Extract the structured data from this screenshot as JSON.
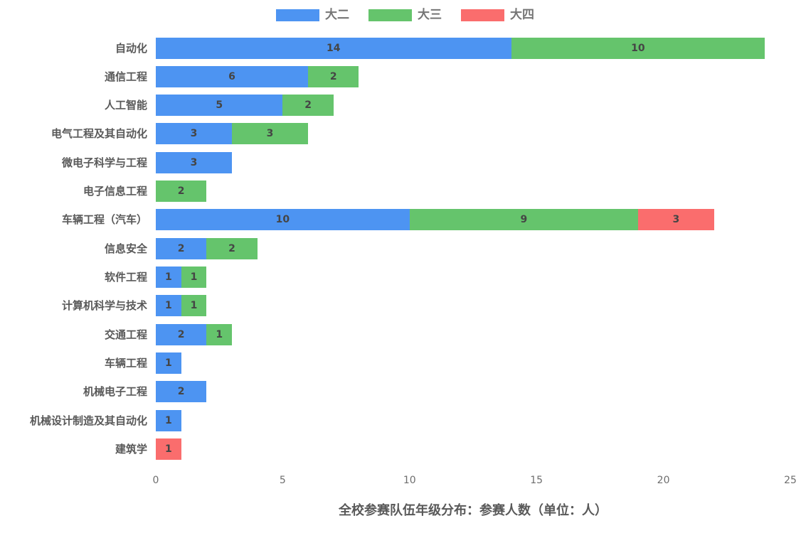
{
  "chart_data": {
    "type": "bar",
    "orientation": "horizontal",
    "stacked": true,
    "title": "全校参赛队伍年级分布：参赛人数（单位：人）",
    "categories": [
      "自动化",
      "通信工程",
      "人工智能",
      "电气工程及其自动化",
      "微电子科学与工程",
      "电子信息工程",
      "车辆工程（汽车）",
      "信息安全",
      "软件工程",
      "计算机科学与技术",
      "交通工程",
      "车辆工程",
      "机械电子工程",
      "机械设计制造及其自动化",
      "建筑学"
    ],
    "series": [
      {
        "name": "大二",
        "color": "#4D94F2",
        "values": [
          14,
          6,
          5,
          3,
          3,
          0,
          10,
          2,
          1,
          1,
          2,
          1,
          2,
          1,
          0
        ]
      },
      {
        "name": "大三",
        "color": "#65C46C",
        "values": [
          10,
          2,
          2,
          3,
          0,
          2,
          9,
          2,
          1,
          1,
          1,
          0,
          0,
          0,
          0
        ]
      },
      {
        "name": "大四",
        "color": "#FA6D6D",
        "values": [
          0,
          0,
          0,
          0,
          0,
          0,
          3,
          0,
          0,
          0,
          0,
          0,
          0,
          0,
          1
        ]
      }
    ],
    "xlim": [
      0,
      25
    ],
    "xticks": [
      0,
      5,
      10,
      15,
      20,
      25
    ],
    "legend_position": "top",
    "grid": false,
    "show_values": true,
    "background": "#ffffff",
    "value_label_color": "#454545",
    "category_label_color": "#595959",
    "tick_label_color": "#6e6e6e",
    "title_color": "#595959"
  }
}
